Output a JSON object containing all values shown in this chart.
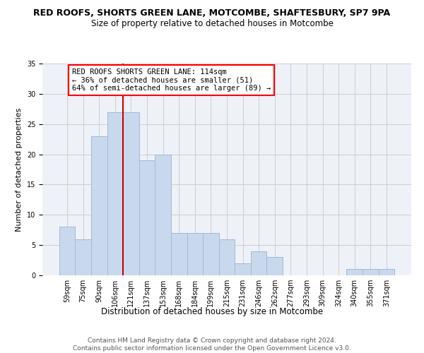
{
  "title": "RED ROOFS, SHORTS GREEN LANE, MOTCOMBE, SHAFTESBURY, SP7 9PA",
  "subtitle": "Size of property relative to detached houses in Motcombe",
  "xlabel": "Distribution of detached houses by size in Motcombe",
  "ylabel": "Number of detached properties",
  "categories": [
    "59sqm",
    "75sqm",
    "90sqm",
    "106sqm",
    "121sqm",
    "137sqm",
    "153sqm",
    "168sqm",
    "184sqm",
    "199sqm",
    "215sqm",
    "231sqm",
    "246sqm",
    "262sqm",
    "277sqm",
    "293sqm",
    "309sqm",
    "324sqm",
    "340sqm",
    "355sqm",
    "371sqm"
  ],
  "values": [
    8,
    6,
    23,
    27,
    27,
    19,
    20,
    7,
    7,
    7,
    6,
    2,
    4,
    3,
    0,
    0,
    0,
    0,
    1,
    1,
    1
  ],
  "bar_color": "#c9d9ed",
  "bar_edge_color": "#a0b8d8",
  "bar_linewidth": 0.7,
  "grid_color": "#cccccc",
  "background_color": "#eef2f8",
  "annotation_text": "RED ROOFS SHORTS GREEN LANE: 114sqm\n← 36% of detached houses are smaller (51)\n64% of semi-detached houses are larger (89) →",
  "vline_x_index": 3.5,
  "vline_color": "#cc0000",
  "ylim": [
    0,
    35
  ],
  "yticks": [
    0,
    5,
    10,
    15,
    20,
    25,
    30,
    35
  ],
  "title_fontsize": 9,
  "subtitle_fontsize": 8.5,
  "xlabel_fontsize": 8.5,
  "ylabel_fontsize": 8,
  "tick_fontsize": 7,
  "annotation_fontsize": 7.5,
  "footer_text": "Contains HM Land Registry data © Crown copyright and database right 2024.\nContains public sector information licensed under the Open Government Licence v3.0.",
  "footer_fontsize": 6.5
}
